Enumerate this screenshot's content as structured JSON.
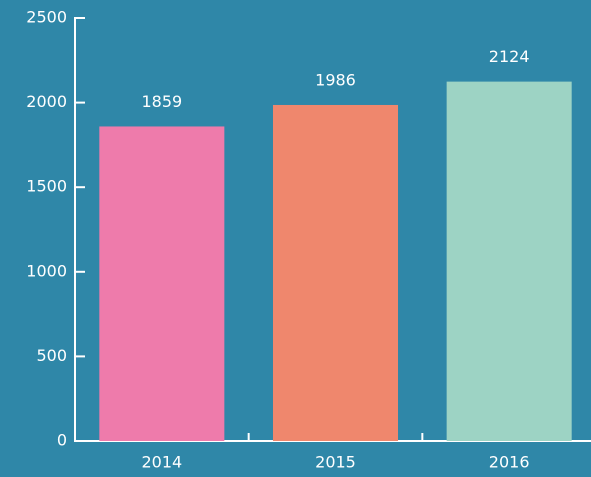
{
  "chart_data": {
    "type": "bar",
    "categories": [
      "2014",
      "2015",
      "2016"
    ],
    "values": [
      1859,
      1986,
      2124
    ],
    "colors": [
      "#ee7bab",
      "#ef876d",
      "#9dd3c4"
    ],
    "ylim": [
      0,
      2500
    ],
    "yticks": [
      0,
      500,
      1000,
      1500,
      2000,
      2500
    ]
  }
}
